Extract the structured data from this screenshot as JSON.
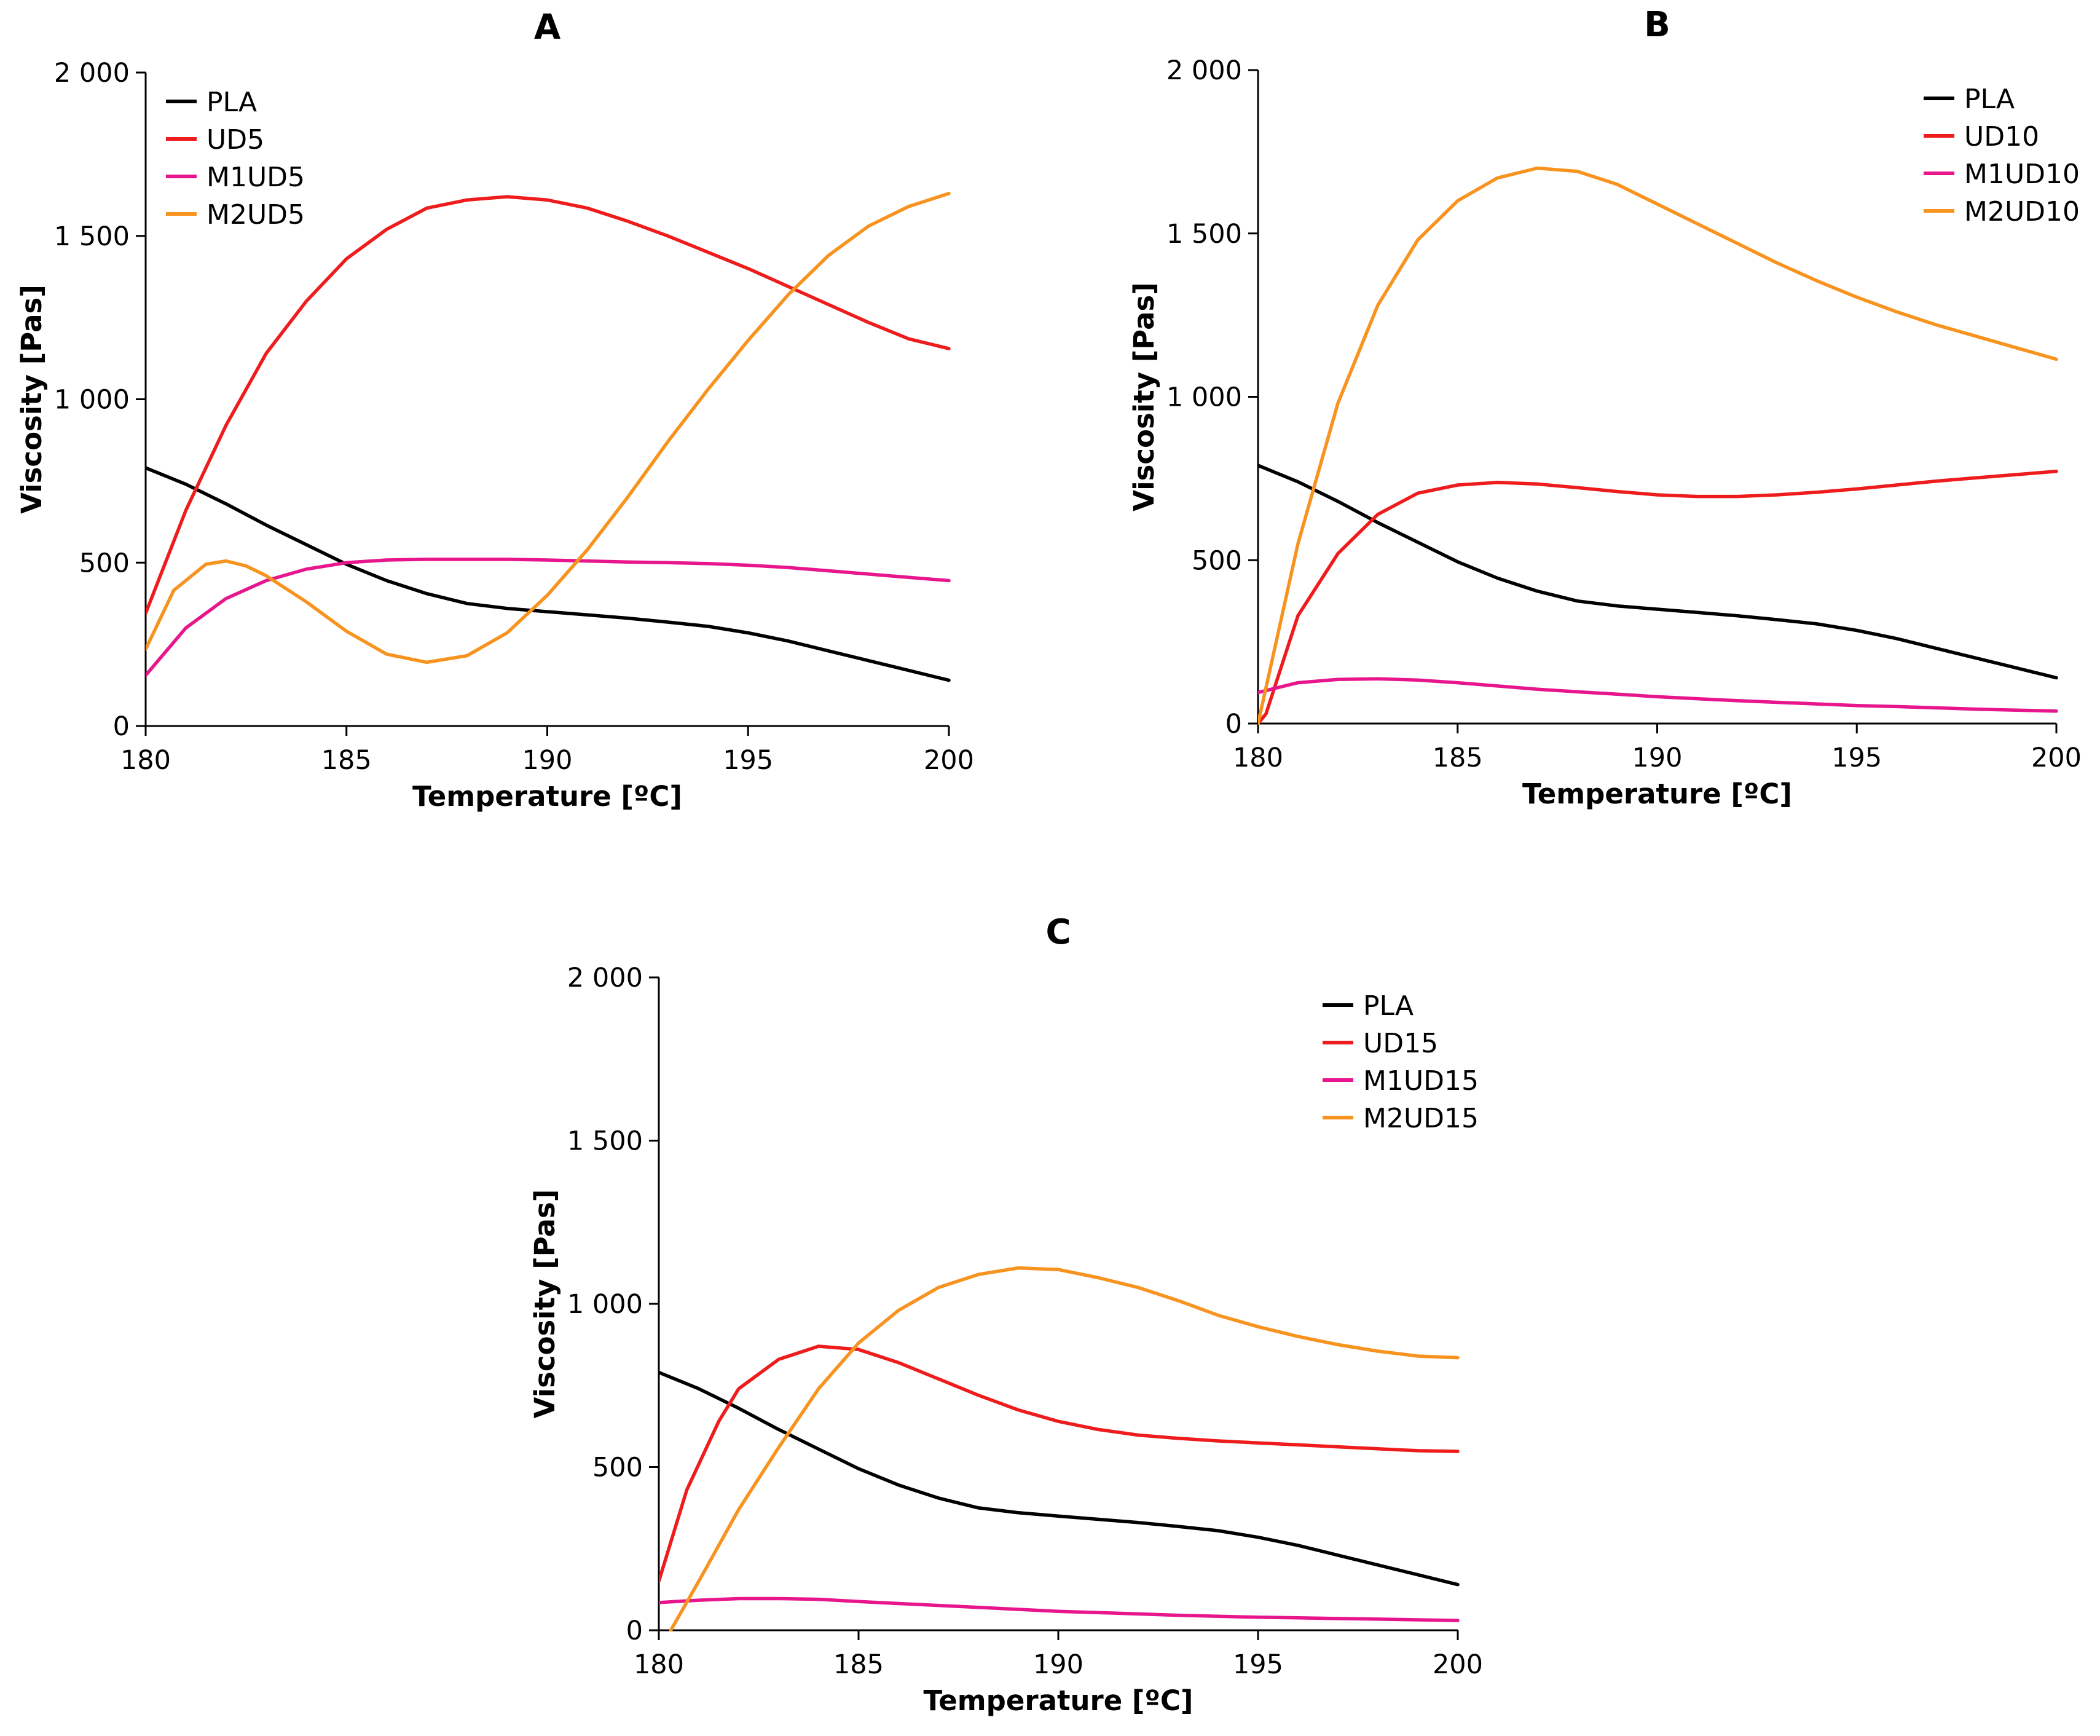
{
  "colors": {
    "PLA": "#000000",
    "red": "#ee1c1c",
    "magenta": "#e8168c",
    "orange": "#f7931e"
  },
  "chart_data": [
    {
      "type": "line",
      "title": "A",
      "xlabel": "Temperature [ºC]",
      "ylabel": "Viscosity [Pas]",
      "xlim": [
        180,
        200
      ],
      "ylim": [
        0,
        2000
      ],
      "xticks": [
        180,
        185,
        190,
        195,
        200
      ],
      "yticks": [
        0,
        500,
        1000,
        1500,
        2000
      ],
      "xtick_labels": [
        "180",
        "185",
        "190",
        "195",
        "200"
      ],
      "ytick_labels": [
        "0",
        "500",
        "1 000",
        "1 500",
        "2 000"
      ],
      "legend_position": "top-left",
      "series": [
        {
          "name": "PLA",
          "color": "#000000",
          "x": [
            180,
            181,
            182,
            183,
            184,
            185,
            186,
            187,
            188,
            189,
            190,
            191,
            192,
            193,
            194,
            195,
            196,
            197,
            198,
            199,
            200
          ],
          "values": [
            790,
            740,
            680,
            615,
            555,
            495,
            445,
            405,
            375,
            360,
            350,
            340,
            330,
            318,
            305,
            285,
            260,
            230,
            200,
            170,
            140
          ]
        },
        {
          "name": "UD5",
          "color": "#ee1c1c",
          "x": [
            180,
            181,
            182,
            183,
            184,
            185,
            186,
            187,
            188,
            189,
            190,
            191,
            192,
            193,
            194,
            195,
            196,
            197,
            198,
            199,
            200
          ],
          "values": [
            345,
            660,
            920,
            1140,
            1300,
            1430,
            1520,
            1585,
            1610,
            1620,
            1610,
            1585,
            1545,
            1500,
            1450,
            1400,
            1345,
            1290,
            1235,
            1185,
            1155
          ]
        },
        {
          "name": "M1UD5",
          "color": "#e8168c",
          "x": [
            180,
            181,
            182,
            183,
            184,
            185,
            186,
            187,
            188,
            189,
            190,
            191,
            192,
            193,
            194,
            195,
            196,
            197,
            198,
            199,
            200
          ],
          "values": [
            155,
            300,
            390,
            445,
            480,
            500,
            508,
            510,
            510,
            510,
            508,
            505,
            502,
            500,
            497,
            492,
            485,
            475,
            465,
            455,
            445
          ]
        },
        {
          "name": "M2UD5",
          "color": "#f7931e",
          "x": [
            180,
            180.7,
            181.5,
            182,
            182.5,
            183,
            184,
            185,
            186,
            187,
            188,
            189,
            190,
            191,
            192,
            193,
            194,
            195,
            196,
            197,
            198,
            199,
            200
          ],
          "values": [
            235,
            415,
            495,
            505,
            490,
            460,
            380,
            290,
            220,
            195,
            215,
            285,
            400,
            540,
            700,
            870,
            1030,
            1180,
            1320,
            1440,
            1530,
            1590,
            1630
          ]
        }
      ]
    },
    {
      "type": "line",
      "title": "B",
      "xlabel": "Temperature [ºC]",
      "ylabel": "Viscosity [Pas]",
      "xlim": [
        180,
        200
      ],
      "ylim": [
        0,
        2000
      ],
      "xticks": [
        180,
        185,
        190,
        195,
        200
      ],
      "yticks": [
        0,
        500,
        1000,
        1500,
        2000
      ],
      "xtick_labels": [
        "180",
        "185",
        "190",
        "195",
        "200"
      ],
      "ytick_labels": [
        "0",
        "500",
        "1 000",
        "1 500",
        "2 000"
      ],
      "legend_position": "top-right",
      "series": [
        {
          "name": "PLA",
          "color": "#000000",
          "x": [
            180,
            181,
            182,
            183,
            184,
            185,
            186,
            187,
            188,
            189,
            190,
            191,
            192,
            193,
            194,
            195,
            196,
            197,
            198,
            199,
            200
          ],
          "values": [
            790,
            740,
            680,
            615,
            555,
            495,
            445,
            405,
            375,
            360,
            350,
            340,
            330,
            318,
            305,
            285,
            260,
            230,
            200,
            170,
            140
          ]
        },
        {
          "name": "UD10",
          "color": "#ee1c1c",
          "x": [
            180,
            180.2,
            181,
            182,
            183,
            184,
            185,
            186,
            187,
            188,
            189,
            190,
            191,
            192,
            193,
            194,
            195,
            196,
            197,
            198,
            199,
            200
          ],
          "values": [
            0,
            30,
            330,
            520,
            640,
            705,
            730,
            738,
            733,
            722,
            710,
            700,
            695,
            695,
            700,
            708,
            718,
            730,
            742,
            752,
            762,
            772
          ]
        },
        {
          "name": "M1UD10",
          "color": "#e8168c",
          "x": [
            180,
            181,
            182,
            183,
            184,
            185,
            186,
            187,
            188,
            189,
            190,
            191,
            192,
            193,
            194,
            195,
            196,
            197,
            198,
            199,
            200
          ],
          "values": [
            95,
            125,
            135,
            137,
            133,
            125,
            115,
            105,
            97,
            90,
            82,
            76,
            70,
            65,
            60,
            55,
            52,
            48,
            44,
            41,
            38
          ]
        },
        {
          "name": "M2UD10",
          "color": "#f7931e",
          "x": [
            180,
            181,
            182,
            183,
            184,
            185,
            186,
            187,
            188,
            189,
            190,
            191,
            192,
            193,
            194,
            195,
            196,
            197,
            198,
            199,
            200
          ],
          "values": [
            0,
            550,
            980,
            1280,
            1480,
            1600,
            1670,
            1700,
            1690,
            1650,
            1590,
            1530,
            1470,
            1410,
            1355,
            1305,
            1260,
            1220,
            1185,
            1150,
            1115
          ]
        }
      ]
    },
    {
      "type": "line",
      "title": "C",
      "xlabel": "Temperature [ºC]",
      "ylabel": "Viscosity [Pas]",
      "xlim": [
        180,
        200
      ],
      "ylim": [
        0,
        2000
      ],
      "xticks": [
        180,
        185,
        190,
        195,
        200
      ],
      "yticks": [
        0,
        500,
        1000,
        1500,
        2000
      ],
      "xtick_labels": [
        "180",
        "185",
        "190",
        "195",
        "200"
      ],
      "ytick_labels": [
        "0",
        "500",
        "1 000",
        "1 500",
        "2 000"
      ],
      "legend_position": "top-right",
      "series": [
        {
          "name": "PLA",
          "color": "#000000",
          "x": [
            180,
            181,
            182,
            183,
            184,
            185,
            186,
            187,
            188,
            189,
            190,
            191,
            192,
            193,
            194,
            195,
            196,
            197,
            198,
            199,
            200
          ],
          "values": [
            790,
            740,
            680,
            615,
            555,
            495,
            445,
            405,
            375,
            360,
            350,
            340,
            330,
            318,
            305,
            285,
            260,
            230,
            200,
            170,
            140
          ]
        },
        {
          "name": "UD15",
          "color": "#ee1c1c",
          "x": [
            180,
            180.7,
            181.5,
            182,
            183,
            184,
            185,
            186,
            187,
            188,
            189,
            190,
            191,
            192,
            193,
            194,
            195,
            196,
            197,
            198,
            199,
            200
          ],
          "values": [
            150,
            430,
            640,
            740,
            830,
            870,
            860,
            820,
            770,
            720,
            675,
            640,
            615,
            598,
            588,
            580,
            574,
            568,
            562,
            556,
            550,
            548
          ]
        },
        {
          "name": "M1UD15",
          "color": "#e8168c",
          "x": [
            180,
            181,
            182,
            183,
            184,
            185,
            186,
            187,
            188,
            189,
            190,
            191,
            192,
            193,
            194,
            195,
            196,
            197,
            198,
            199,
            200
          ],
          "values": [
            85,
            92,
            97,
            97,
            95,
            88,
            82,
            76,
            70,
            64,
            58,
            54,
            50,
            46,
            43,
            40,
            38,
            36,
            34,
            32,
            30
          ]
        },
        {
          "name": "M2UD15",
          "color": "#f7931e",
          "x": [
            180.3,
            181,
            182,
            183,
            184,
            185,
            186,
            187,
            188,
            189,
            190,
            191,
            192,
            193,
            194,
            195,
            196,
            197,
            198,
            199,
            200
          ],
          "values": [
            0,
            150,
            370,
            560,
            740,
            880,
            980,
            1050,
            1090,
            1110,
            1105,
            1080,
            1050,
            1010,
            965,
            930,
            900,
            875,
            855,
            840,
            835
          ]
        }
      ]
    }
  ]
}
